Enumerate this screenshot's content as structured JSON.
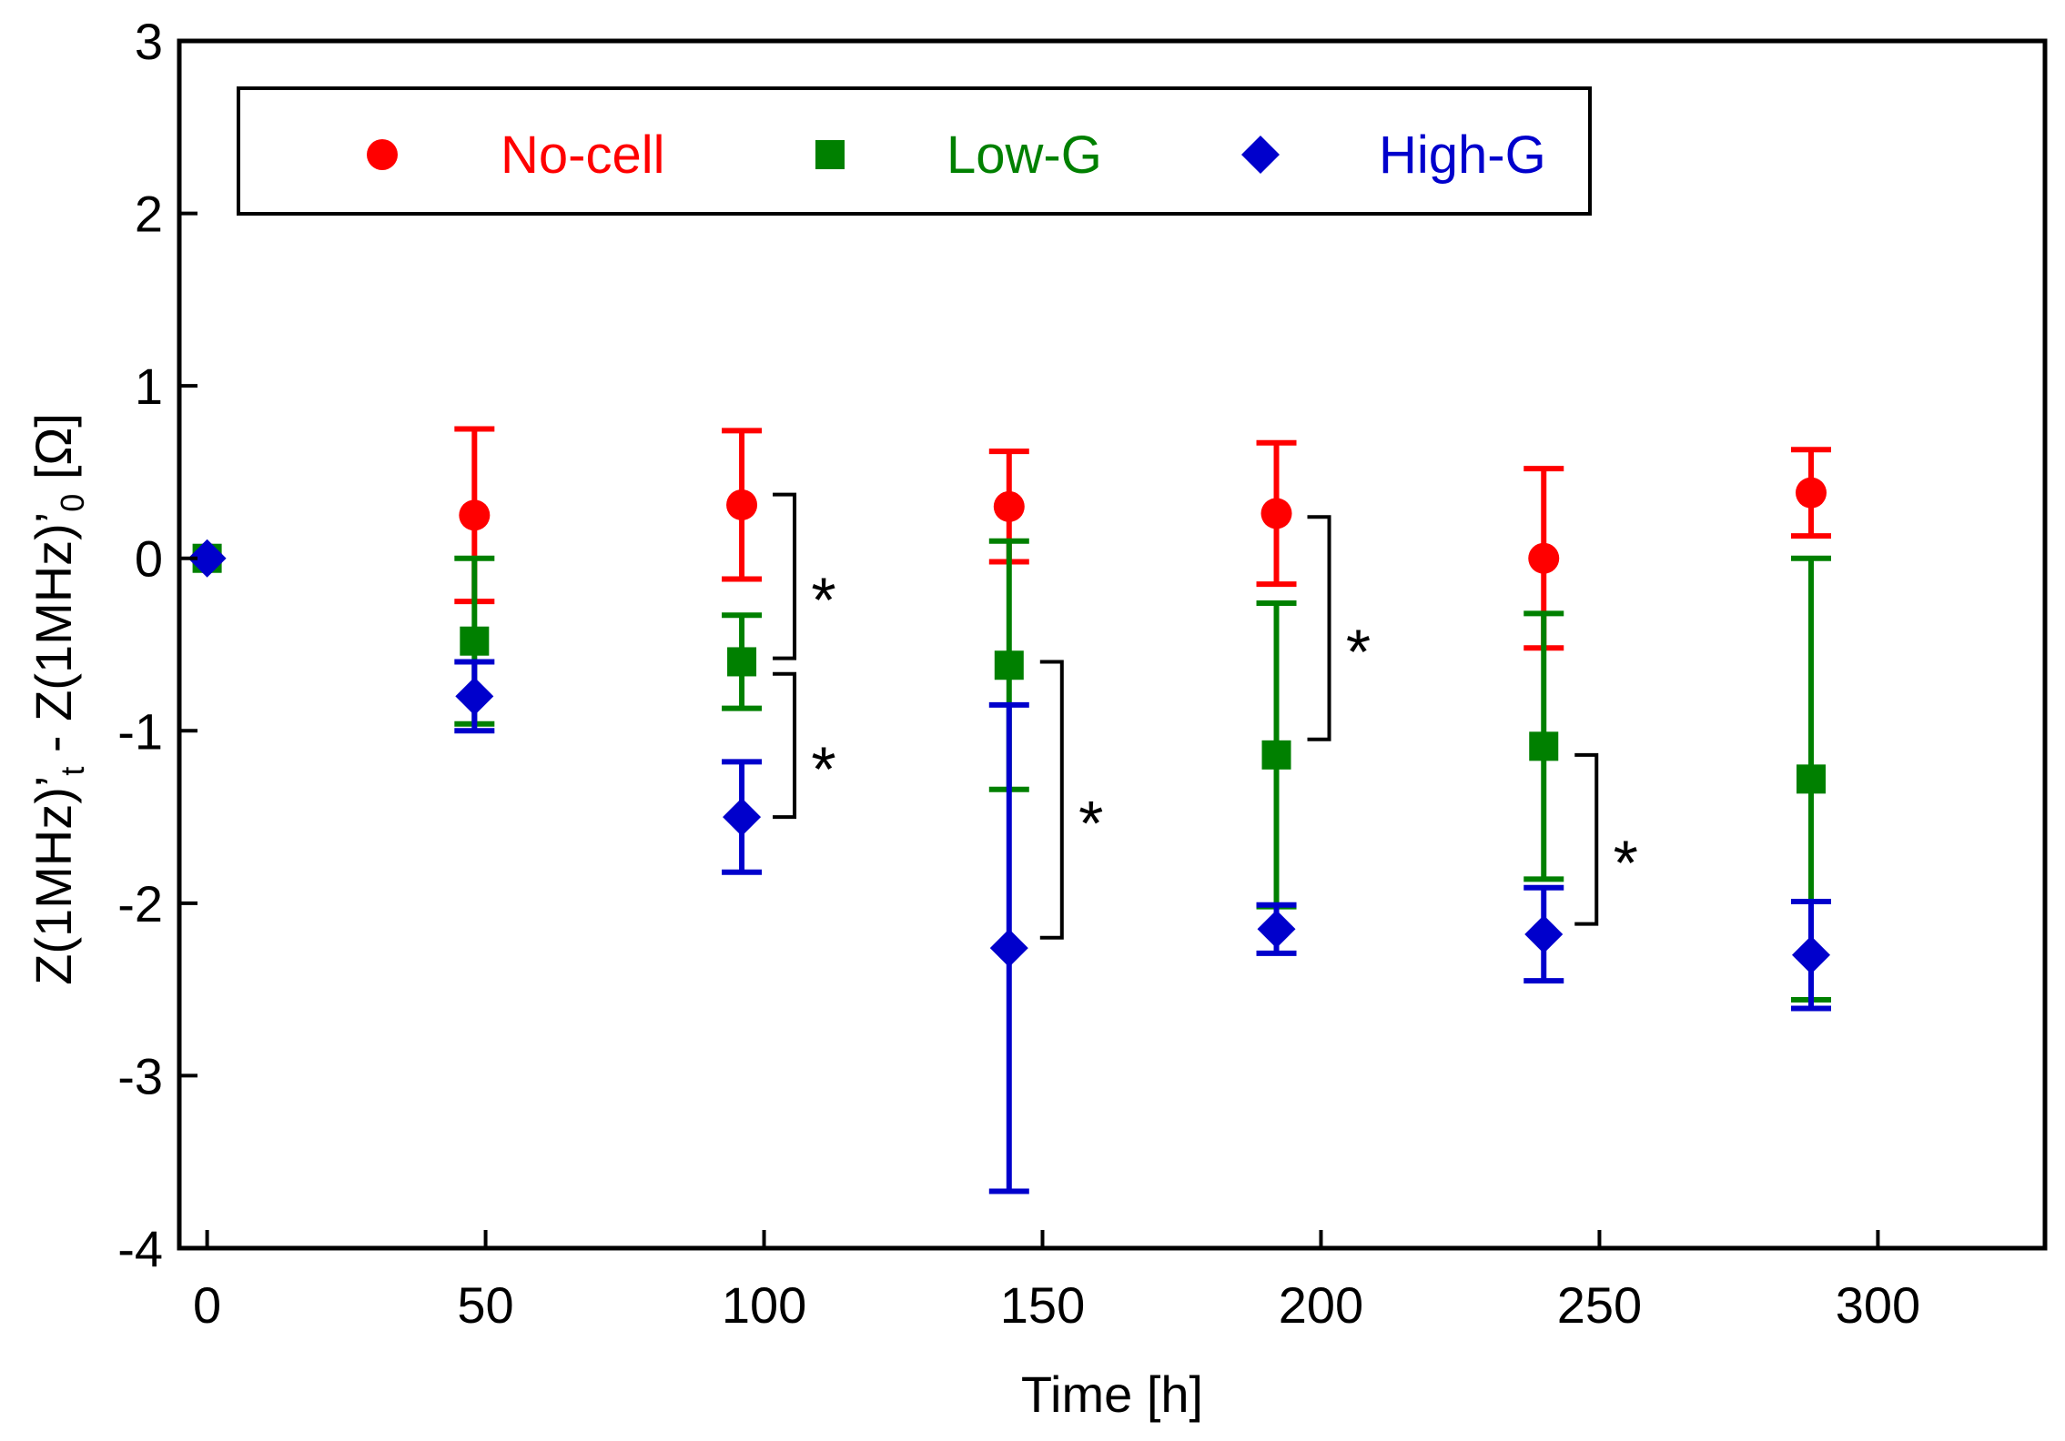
{
  "chart_data": {
    "type": "scatter",
    "title": "",
    "xlabel": "Time [h]",
    "ylabel": {
      "main": "Z(1MHz)’",
      "sub_t": "t",
      "mid": " - Z(1MHz)’",
      "sub_0": "0",
      "unit": " [Ω]"
    },
    "xlim": [
      -5,
      330
    ],
    "ylim": [
      -4,
      3
    ],
    "xticks": [
      0,
      50,
      100,
      150,
      200,
      250,
      300
    ],
    "yticks": [
      -4,
      -3,
      -2,
      -1,
      0,
      1,
      2,
      3
    ],
    "grid": false,
    "legend_position": "top",
    "series": [
      {
        "name": "No-cell",
        "color": "#ff0000",
        "marker": "circle",
        "x": [
          0,
          48,
          96,
          144,
          192,
          240,
          288
        ],
        "y": [
          0,
          0.25,
          0.31,
          0.3,
          0.26,
          0.0,
          0.38
        ],
        "err": [
          0,
          0.5,
          0.43,
          0.32,
          0.41,
          0.52,
          0.25
        ]
      },
      {
        "name": "Low-G",
        "color": "#008000",
        "marker": "square",
        "x": [
          0,
          48,
          96,
          144,
          192,
          240,
          288
        ],
        "y": [
          0,
          -0.48,
          -0.6,
          -0.62,
          -1.14,
          -1.09,
          -1.28
        ],
        "err": [
          0,
          0.48,
          0.27,
          0.72,
          0.88,
          0.77,
          1.28
        ]
      },
      {
        "name": "High-G",
        "color": "#0000cc",
        "marker": "diamond",
        "x": [
          0,
          48,
          96,
          144,
          192,
          240,
          288
        ],
        "y": [
          0,
          -0.8,
          -1.5,
          -2.26,
          -2.15,
          -2.18,
          -2.3
        ],
        "err": [
          0,
          0.2,
          0.32,
          1.41,
          0.14,
          0.27,
          0.31
        ]
      }
    ],
    "annotations": [
      {
        "text": "*",
        "x": 96,
        "y_top": 0.37,
        "y_bottom": -0.58
      },
      {
        "text": "*",
        "x": 96,
        "y_top": -0.67,
        "y_bottom": -1.5
      },
      {
        "text": "*",
        "x": 144,
        "y_top": -0.6,
        "y_bottom": -2.2
      },
      {
        "text": "*",
        "x": 192,
        "y_top": 0.24,
        "y_bottom": -1.05
      },
      {
        "text": "*",
        "x": 240,
        "y_top": -1.14,
        "y_bottom": -2.12
      }
    ]
  }
}
